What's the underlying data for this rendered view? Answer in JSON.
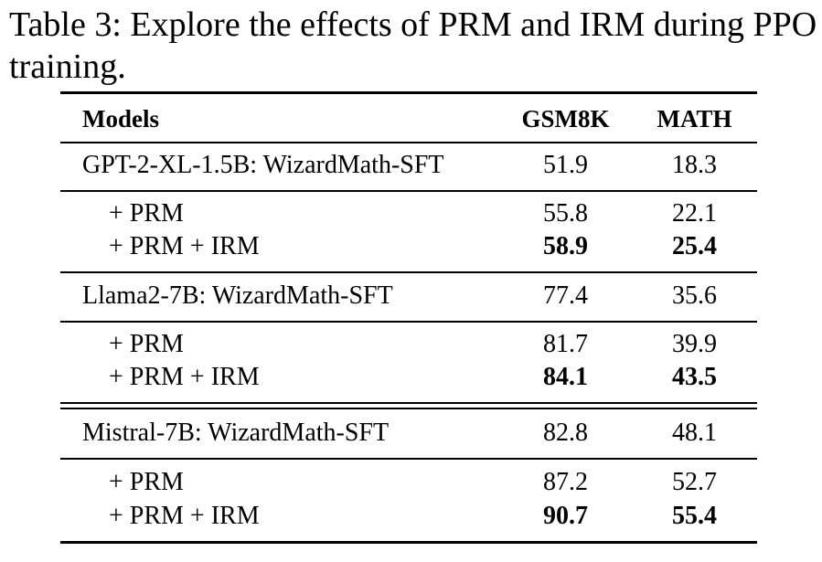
{
  "caption": "Table 3: Explore the effects of PRM and IRM during PPO training.",
  "table": {
    "headers": {
      "model": "Models",
      "gsm8k": "GSM8K",
      "math": "MATH"
    },
    "rows": [
      {
        "model": "GPT-2-XL-1.5B: WizardMath-SFT",
        "gsm8k": "51.9",
        "math": "18.3"
      },
      {
        "model": "+ PRM",
        "gsm8k": "55.8",
        "math": "22.1"
      },
      {
        "model": "+ PRM + IRM",
        "gsm8k": "58.9",
        "math": "25.4"
      },
      {
        "model": "Llama2-7B: WizardMath-SFT",
        "gsm8k": "77.4",
        "math": "35.6"
      },
      {
        "model": "+ PRM",
        "gsm8k": "81.7",
        "math": "39.9"
      },
      {
        "model": "+ PRM + IRM",
        "gsm8k": "84.1",
        "math": "43.5"
      },
      {
        "model": "Mistral-7B: WizardMath-SFT",
        "gsm8k": "82.8",
        "math": "48.1"
      },
      {
        "model": "+ PRM",
        "gsm8k": "87.2",
        "math": "52.7"
      },
      {
        "model": "+ PRM + IRM",
        "gsm8k": "90.7",
        "math": "55.4"
      }
    ]
  }
}
